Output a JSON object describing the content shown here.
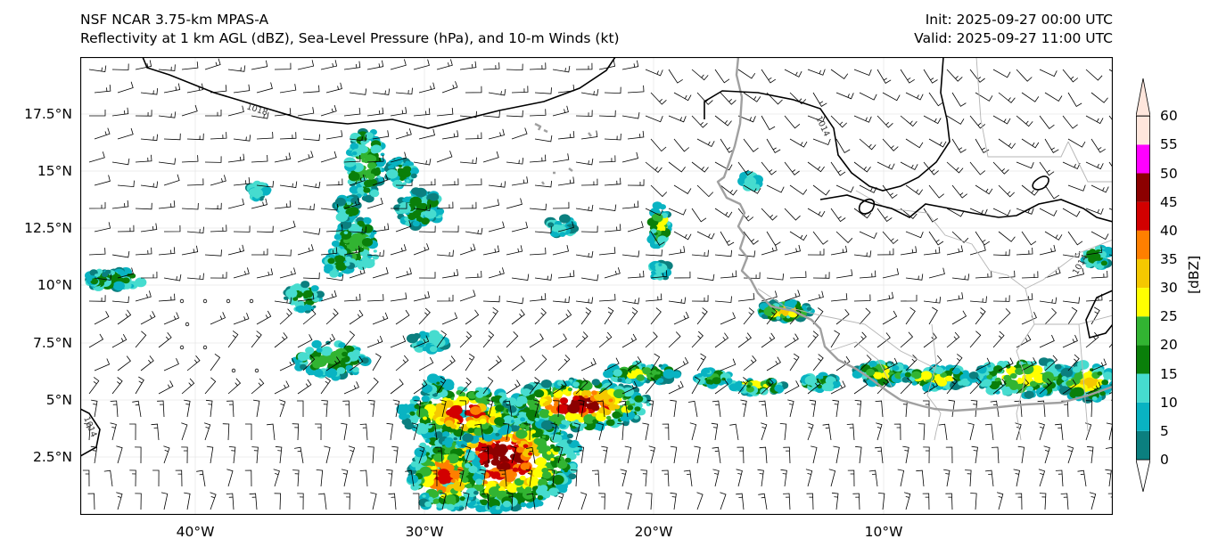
{
  "title": {
    "model": "NSF NCAR 3.75-km MPAS-A",
    "fields": "Reflectivity at 1 km AGL (dBZ), Sea-Level Pressure (hPa), and 10-m Winds (kt)",
    "init": "Init: 2025-09-27 00:00 UTC",
    "valid": "Valid: 2025-09-27 11:00 UTC"
  },
  "map": {
    "lat_labels": [
      "17.5°N",
      "15°N",
      "12.5°N",
      "10°N",
      "7.5°N",
      "5°N",
      "2.5°N"
    ],
    "lon_labels": [
      "40°W",
      "30°W",
      "20°W",
      "10°W"
    ],
    "isobar_labels": [
      "1018",
      "1014",
      "1014",
      "1014"
    ],
    "coastline_color": "#a0a0a0",
    "border_color": "#b4b4b4",
    "isobar_color": "#000000"
  },
  "colorbar": {
    "unit": "[dBZ]",
    "levels": [
      "0",
      "5",
      "10",
      "15",
      "20",
      "25",
      "30",
      "35",
      "40",
      "45",
      "50",
      "55",
      "60"
    ],
    "colors": [
      "#ffffff",
      "#0b7f7f",
      "#09b3c2",
      "#46dccf",
      "#0a7f0a",
      "#32b432",
      "#ffff00",
      "#f5c800",
      "#ff7f00",
      "#d20000",
      "#8c0000",
      "#ff00ff",
      "#ffe6dc"
    ]
  }
}
